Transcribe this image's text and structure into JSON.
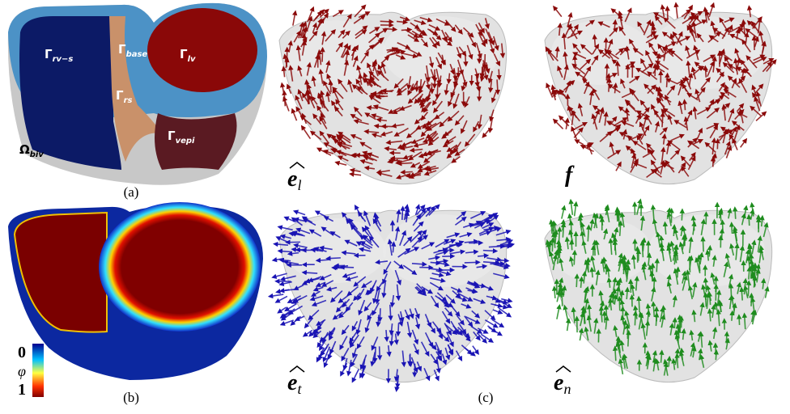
{
  "panel_a": {
    "caption": "(a)",
    "labels": [
      {
        "symbol": "Γ",
        "sub": "rv−s"
      },
      {
        "symbol": "Γ",
        "sub": "base"
      },
      {
        "symbol": "Γ",
        "sub": "lv"
      },
      {
        "symbol": "Γ",
        "sub": "rs"
      },
      {
        "symbol": "Γ",
        "sub": "vepi"
      },
      {
        "symbol": "Ω",
        "sub": "biv"
      }
    ]
  },
  "panel_b": {
    "caption": "(b)",
    "colorbar": {
      "top": "0",
      "symbol": "φ",
      "bottom": "1"
    }
  },
  "panel_c": {
    "caption": "(c)",
    "fields": [
      {
        "base": "e",
        "sub": "l"
      },
      {
        "base": "f"
      },
      {
        "base": "e",
        "sub": "t"
      },
      {
        "base": "e",
        "sub": "n"
      }
    ]
  }
}
